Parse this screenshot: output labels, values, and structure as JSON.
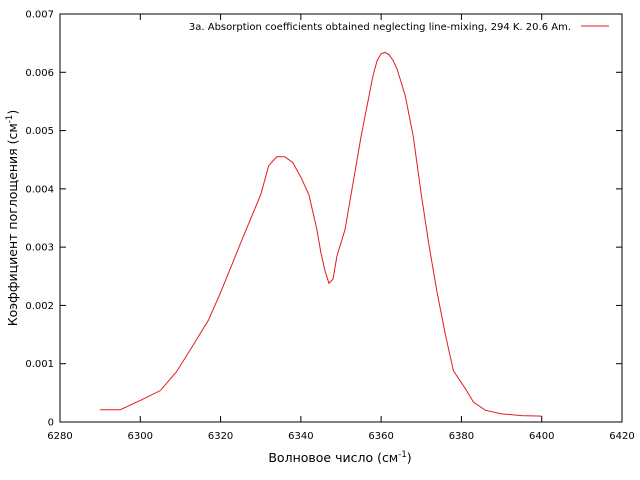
{
  "chart_data": {
    "type": "line",
    "xlabel": "Волновое число (см",
    "xlabel_sup": "-1",
    "xlabel_end": ")",
    "ylabel": "Коэффициент поглощения (см",
    "ylabel_sup": "-1",
    "ylabel_end": ")",
    "xlim": [
      6280,
      6420
    ],
    "ylim": [
      0,
      0.007
    ],
    "xticks": [
      6280,
      6300,
      6320,
      6340,
      6360,
      6380,
      6400,
      6420
    ],
    "xtick_labels": [
      "6280",
      "6300",
      "6320",
      "6340",
      "6360",
      "6380",
      "6400",
      "6420"
    ],
    "yticks": [
      0,
      0.001,
      0.002,
      0.003,
      0.004,
      0.005,
      0.006,
      0.007
    ],
    "ytick_labels": [
      "0",
      "0.001",
      "0.002",
      "0.003",
      "0.004",
      "0.005",
      "0.006",
      "0.007"
    ],
    "grid": false,
    "legend_position": "top-right",
    "series": [
      {
        "name": "3a. Absorption coefficients obtained neglecting line-mixing, 294 K. 20.6 Am.",
        "color": "#e41a1c",
        "x": [
          6290,
          6295,
          6300,
          6305,
          6309,
          6313,
          6317,
          6320,
          6323,
          6325,
          6328,
          6330,
          6332,
          6334,
          6336,
          6338,
          6340,
          6342,
          6344,
          6345,
          6346,
          6347,
          6348,
          6349,
          6351,
          6353,
          6355,
          6357,
          6358,
          6359,
          6360,
          6361,
          6362,
          6363,
          6364,
          6366,
          6368,
          6370,
          6372,
          6374,
          6376,
          6378,
          6381,
          6383,
          6386,
          6390,
          6395,
          6400
        ],
        "y": [
          0.00021,
          0.00021,
          0.00037,
          0.00054,
          0.00086,
          0.0013,
          0.00175,
          0.00222,
          0.00273,
          0.00307,
          0.00357,
          0.0039,
          0.0044,
          0.00455,
          0.00455,
          0.00445,
          0.0042,
          0.0039,
          0.0033,
          0.0029,
          0.0026,
          0.00238,
          0.00245,
          0.00285,
          0.0033,
          0.0041,
          0.0049,
          0.0056,
          0.00595,
          0.0062,
          0.00632,
          0.00634,
          0.0063,
          0.0062,
          0.00605,
          0.0056,
          0.0049,
          0.0039,
          0.003,
          0.0022,
          0.0015,
          0.00088,
          0.00057,
          0.00034,
          0.0002,
          0.00014,
          0.00011,
          0.0001
        ]
      }
    ]
  }
}
